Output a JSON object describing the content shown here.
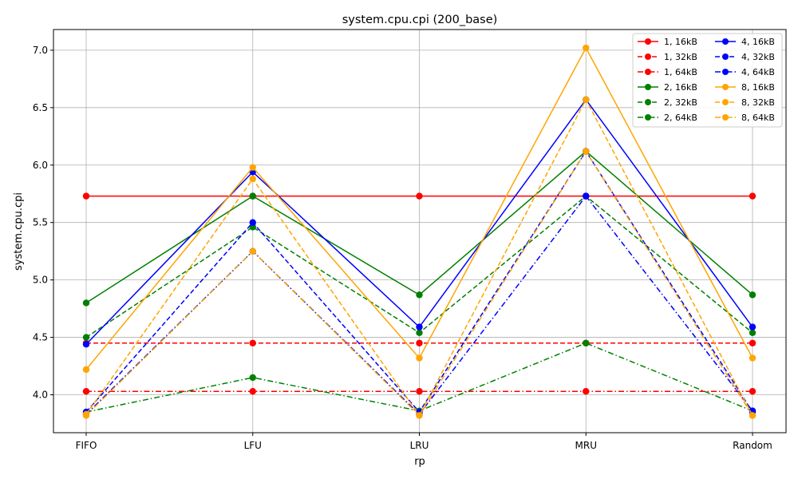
{
  "chart_data": {
    "type": "line",
    "title": "system.cpu.cpi (200_base)",
    "xlabel": "rp",
    "ylabel": "system.cpu.cpi",
    "categories": [
      "FIFO",
      "LFU",
      "LRU",
      "MRU",
      "Random"
    ],
    "ylim": [
      3.67,
      7.18
    ],
    "yticks": [
      "4.0",
      "4.5",
      "5.0",
      "5.5",
      "6.0",
      "6.5",
      "7.0"
    ],
    "grid": true,
    "legend_position": "top-right",
    "series": [
      {
        "name": "1, 16kB",
        "color": "#ff0000",
        "dash": "solid",
        "values": [
          5.73,
          5.73,
          5.73,
          5.73,
          5.73
        ]
      },
      {
        "name": "1, 32kB",
        "color": "#ff0000",
        "dash": "dashed",
        "values": [
          4.45,
          4.45,
          4.45,
          4.45,
          4.45
        ]
      },
      {
        "name": "1, 64kB",
        "color": "#ff0000",
        "dash": "dashdot",
        "values": [
          4.03,
          4.03,
          4.03,
          4.03,
          4.03
        ]
      },
      {
        "name": "2, 16kB",
        "color": "#008000",
        "dash": "solid",
        "values": [
          4.8,
          5.73,
          4.87,
          6.12,
          4.87
        ]
      },
      {
        "name": "2, 32kB",
        "color": "#008000",
        "dash": "dashed",
        "values": [
          4.5,
          5.46,
          4.54,
          5.73,
          4.54
        ]
      },
      {
        "name": "2, 64kB",
        "color": "#008000",
        "dash": "dashdot",
        "values": [
          3.85,
          4.15,
          3.86,
          4.45,
          3.86
        ]
      },
      {
        "name": "4, 16kB",
        "color": "#0000ff",
        "dash": "solid",
        "values": [
          4.44,
          5.94,
          4.59,
          6.57,
          4.59
        ]
      },
      {
        "name": "4, 32kB",
        "color": "#0000ff",
        "dash": "dashed",
        "values": [
          3.85,
          5.5,
          3.85,
          6.12,
          3.85
        ]
      },
      {
        "name": "4, 64kB",
        "color": "#0000ff",
        "dash": "dashdot",
        "values": [
          3.83,
          5.25,
          3.83,
          5.73,
          3.86
        ]
      },
      {
        "name": "8, 16kB",
        "color": "#ffa500",
        "dash": "solid",
        "values": [
          4.22,
          5.98,
          4.32,
          7.02,
          4.32
        ]
      },
      {
        "name": "8, 32kB",
        "color": "#ffa500",
        "dash": "dashed",
        "values": [
          3.83,
          5.88,
          3.82,
          6.57,
          3.82
        ]
      },
      {
        "name": "8, 64kB",
        "color": "#ffa500",
        "dash": "dashdot",
        "values": [
          3.82,
          5.25,
          3.82,
          6.12,
          3.82
        ]
      }
    ]
  }
}
